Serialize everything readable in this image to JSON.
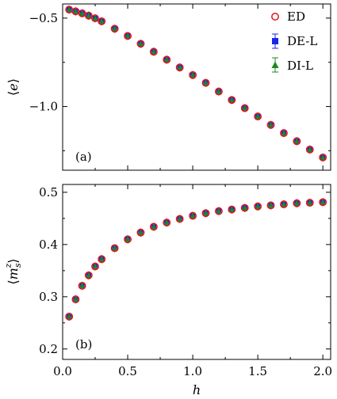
{
  "chart_data": [
    {
      "type": "scatter",
      "panel_label": "(a)",
      "ylabel": "⟨e⟩",
      "xlabel": "",
      "xlim": [
        0.0,
        2.06
      ],
      "ylim": [
        -1.36,
        -0.42
      ],
      "xticks": [
        0.0,
        0.5,
        1.0,
        1.5,
        2.0
      ],
      "yticks": [
        -0.5,
        -1.0
      ],
      "ytick_labels": [
        "−0.5",
        "−1.0"
      ],
      "legend_position": "top-right",
      "legend": [
        {
          "name": "ED",
          "marker": "open-circle",
          "color": "#e8101b"
        },
        {
          "name": "DE-L",
          "marker": "square-errorbar",
          "color": "#1a26e6"
        },
        {
          "name": "DI-L",
          "marker": "triangle-errorbar",
          "color": "#1a8a1a"
        }
      ],
      "x": [
        0.05,
        0.1,
        0.15,
        0.2,
        0.25,
        0.3,
        0.4,
        0.5,
        0.6,
        0.7,
        0.8,
        0.9,
        1.0,
        1.1,
        1.2,
        1.3,
        1.4,
        1.5,
        1.6,
        1.7,
        1.8,
        1.9,
        2.0
      ],
      "series": [
        {
          "name": "ED",
          "values": [
            -0.452,
            -0.462,
            -0.473,
            -0.486,
            -0.501,
            -0.518,
            -0.56,
            -0.601,
            -0.645,
            -0.69,
            -0.735,
            -0.779,
            -0.822,
            -0.866,
            -0.915,
            -0.963,
            -1.009,
            -1.056,
            -1.104,
            -1.15,
            -1.196,
            -1.243,
            -1.288
          ]
        },
        {
          "name": "DE-L",
          "values": [
            -0.452,
            -0.462,
            -0.473,
            -0.486,
            -0.501,
            -0.518,
            -0.56,
            -0.601,
            -0.645,
            -0.69,
            -0.735,
            -0.779,
            -0.822,
            -0.866,
            -0.915,
            -0.963,
            -1.009,
            -1.056,
            -1.104,
            -1.15,
            -1.196,
            -1.243,
            -1.288
          ]
        },
        {
          "name": "DI-L",
          "values": [
            -0.452,
            -0.462,
            -0.473,
            -0.486,
            -0.501,
            -0.518,
            -0.56,
            -0.601,
            -0.645,
            -0.69,
            -0.735,
            -0.779,
            -0.822,
            -0.866,
            -0.915,
            -0.963,
            -1.009,
            -1.056,
            -1.104,
            -1.15,
            -1.196,
            -1.243,
            -1.288
          ]
        }
      ]
    },
    {
      "type": "scatter",
      "panel_label": "(b)",
      "ylabel": "⟨m_s^z⟩",
      "xlabel": "h",
      "xlim": [
        0.0,
        2.06
      ],
      "ylim": [
        0.18,
        0.515
      ],
      "xticks": [
        0.0,
        0.5,
        1.0,
        1.5,
        2.0
      ],
      "xtick_labels": [
        "0.0",
        "0.5",
        "1.0",
        "1.5",
        "2.0"
      ],
      "yticks": [
        0.2,
        0.3,
        0.4,
        0.5
      ],
      "ytick_labels": [
        "0.2",
        "0.3",
        "0.4",
        "0.5"
      ],
      "x": [
        0.05,
        0.1,
        0.15,
        0.2,
        0.25,
        0.3,
        0.4,
        0.5,
        0.6,
        0.7,
        0.8,
        0.9,
        1.0,
        1.1,
        1.2,
        1.3,
        1.4,
        1.5,
        1.6,
        1.7,
        1.8,
        1.9,
        2.0
      ],
      "series": [
        {
          "name": "ED",
          "values": [
            0.262,
            0.295,
            0.321,
            0.341,
            0.358,
            0.372,
            0.393,
            0.41,
            0.423,
            0.434,
            0.442,
            0.449,
            0.455,
            0.46,
            0.464,
            0.467,
            0.47,
            0.473,
            0.475,
            0.477,
            0.479,
            0.48,
            0.481
          ]
        },
        {
          "name": "DE-L",
          "values": [
            0.262,
            0.295,
            0.321,
            0.341,
            0.358,
            0.372,
            0.393,
            0.41,
            0.423,
            0.434,
            0.442,
            0.449,
            0.455,
            0.46,
            0.464,
            0.467,
            0.47,
            0.473,
            0.475,
            0.477,
            0.479,
            0.48,
            0.481
          ]
        },
        {
          "name": "DI-L",
          "values": [
            0.262,
            0.295,
            0.321,
            0.341,
            0.358,
            0.372,
            0.393,
            0.41,
            0.423,
            0.434,
            0.442,
            0.449,
            0.455,
            0.46,
            0.464,
            0.467,
            0.47,
            0.473,
            0.475,
            0.477,
            0.479,
            0.48,
            0.481
          ]
        }
      ]
    }
  ]
}
